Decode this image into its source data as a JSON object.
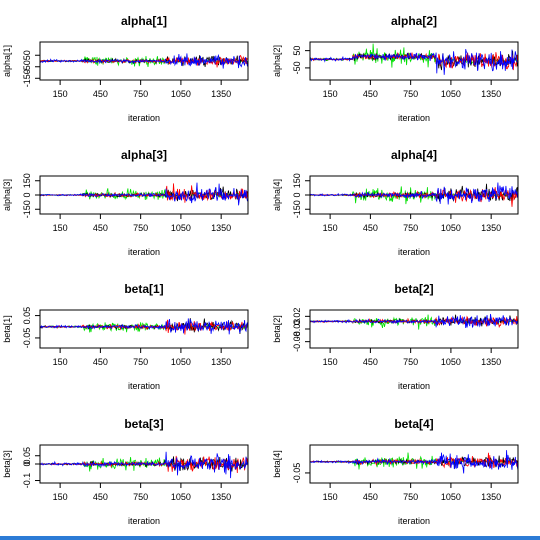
{
  "colors": {
    "chain_1": "#000000",
    "chain_2": "#ff0000",
    "chain_3": "#00e000",
    "chain_4": "#0000ff",
    "bottom_bar": "#2c7bd6"
  },
  "chart_data": [
    {
      "type": "line",
      "title": "alpha[1]",
      "xlabel": "iteration",
      "ylabel": "alpha[1]",
      "xlim": [
        0,
        1550
      ],
      "xticks": [
        150,
        450,
        750,
        1050,
        1350
      ],
      "ylim": [
        -165,
        165
      ],
      "yticks": [
        -150,
        -50,
        50
      ],
      "trace": {
        "segments": [
          [
            0,
            320,
            0,
            12
          ],
          [
            320,
            940,
            0,
            45
          ],
          [
            940,
            1550,
            0,
            60
          ]
        ],
        "color_phases": [
          "blue",
          "green",
          "mixed"
        ]
      }
    },
    {
      "type": "line",
      "title": "alpha[2]",
      "xlabel": "iteration",
      "ylabel": "alpha[2]",
      "xlim": [
        0,
        1550
      ],
      "xticks": [
        150,
        450,
        750,
        1050,
        1350
      ],
      "ylim": [
        -120,
        100
      ],
      "yticks": [
        -50,
        50
      ],
      "trace": {
        "segments": [
          [
            0,
            320,
            0,
            10
          ],
          [
            320,
            940,
            15,
            50
          ],
          [
            940,
            1550,
            -10,
            65
          ]
        ],
        "color_phases": [
          "blue",
          "green",
          "mixed"
        ]
      }
    },
    {
      "type": "line",
      "title": "alpha[3]",
      "xlabel": "iteration",
      "ylabel": "alpha[3]",
      "xlim": [
        0,
        1550
      ],
      "xticks": [
        150,
        450,
        750,
        1050,
        1350
      ],
      "ylim": [
        -200,
        200
      ],
      "yticks": [
        -150,
        0,
        150
      ],
      "trace": {
        "segments": [
          [
            0,
            320,
            0,
            10
          ],
          [
            320,
            940,
            0,
            55
          ],
          [
            940,
            1550,
            0,
            95
          ]
        ],
        "color_phases": [
          "blue",
          "green",
          "mixed"
        ]
      }
    },
    {
      "type": "line",
      "title": "alpha[4]",
      "xlabel": "iteration",
      "ylabel": "alpha[4]",
      "xlim": [
        0,
        1550
      ],
      "xticks": [
        150,
        450,
        750,
        1050,
        1350
      ],
      "ylim": [
        -200,
        200
      ],
      "yticks": [
        -150,
        0,
        150
      ],
      "trace": {
        "segments": [
          [
            0,
            320,
            0,
            10
          ],
          [
            320,
            940,
            0,
            75
          ],
          [
            940,
            1550,
            0,
            95
          ]
        ],
        "color_phases": [
          "blue",
          "green",
          "mixed"
        ]
      }
    },
    {
      "type": "line",
      "title": "beta[1]",
      "xlabel": "iteration",
      "ylabel": "beta[1]",
      "xlim": [
        0,
        1550
      ],
      "xticks": [
        150,
        450,
        750,
        1050,
        1350
      ],
      "ylim": [
        -0.095,
        0.075
      ],
      "yticks": [
        -0.05,
        0.05
      ],
      "trace": {
        "segments": [
          [
            0,
            320,
            0,
            0.006
          ],
          [
            320,
            940,
            0,
            0.025
          ],
          [
            940,
            1550,
            0,
            0.035
          ]
        ],
        "color_phases": [
          "blue",
          "green",
          "mixed"
        ]
      }
    },
    {
      "type": "line",
      "title": "beta[2]",
      "xlabel": "iteration",
      "ylabel": "beta[2]",
      "xlim": [
        0,
        1550
      ],
      "xticks": [
        150,
        450,
        750,
        1050,
        1350
      ],
      "ylim": [
        -0.105,
        0.045
      ],
      "yticks": [
        -0.08,
        -0.03,
        0.02
      ],
      "trace": {
        "segments": [
          [
            0,
            320,
            0,
            0.005
          ],
          [
            320,
            940,
            0,
            0.02
          ],
          [
            940,
            1550,
            0,
            0.026
          ]
        ],
        "color_phases": [
          "blue",
          "green",
          "mixed"
        ]
      }
    },
    {
      "type": "line",
      "title": "beta[3]",
      "xlabel": "iteration",
      "ylabel": "beta[3]",
      "xlim": [
        0,
        1550
      ],
      "xticks": [
        150,
        450,
        750,
        1050,
        1350
      ],
      "ylim": [
        -0.115,
        0.115
      ],
      "yticks": [
        -0.1,
        0,
        0.05
      ],
      "trace": {
        "segments": [
          [
            0,
            320,
            0,
            0.007
          ],
          [
            320,
            940,
            0,
            0.035
          ],
          [
            940,
            1550,
            0,
            0.06
          ]
        ],
        "color_phases": [
          "blue",
          "green",
          "mixed"
        ]
      }
    },
    {
      "type": "line",
      "title": "beta[4]",
      "xlabel": "iteration",
      "ylabel": "beta[4]",
      "xlim": [
        0,
        1550
      ],
      "xticks": [
        150,
        450,
        750,
        1050,
        1350
      ],
      "ylim": [
        -0.095,
        0.075
      ],
      "yticks": [
        -0.05
      ],
      "trace": {
        "segments": [
          [
            0,
            320,
            0,
            0.005
          ],
          [
            320,
            940,
            0,
            0.03
          ],
          [
            940,
            1550,
            0,
            0.035
          ]
        ],
        "color_phases": [
          "blue",
          "green",
          "mixed"
        ]
      }
    }
  ]
}
